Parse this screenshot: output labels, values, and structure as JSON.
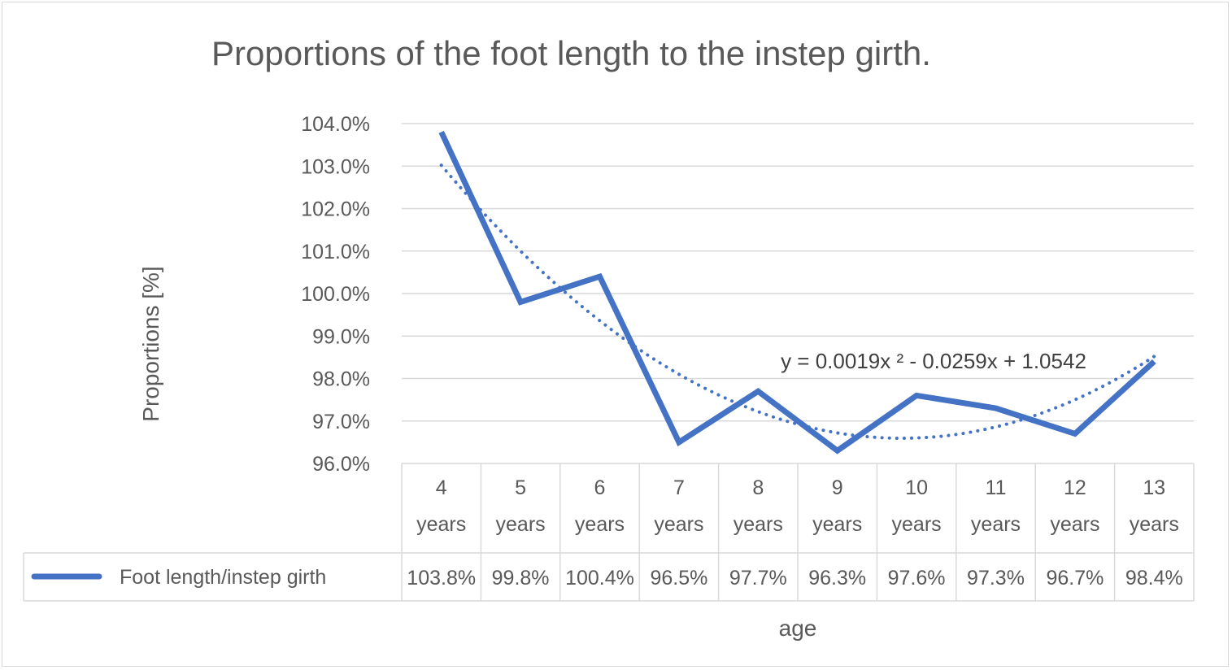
{
  "chart_data": {
    "type": "line",
    "title": "Proportions of the foot length to the instep girth.",
    "xlabel": "age",
    "ylabel": "Proportions [%]",
    "ylim": [
      0.96,
      1.04
    ],
    "y_ticks": [
      "104.0%",
      "103.0%",
      "102.0%",
      "101.0%",
      "100.0%",
      "99.0%",
      "98.0%",
      "97.0%",
      "96.0%"
    ],
    "categories": [
      {
        "num": "4",
        "unit": "years"
      },
      {
        "num": "5",
        "unit": "years"
      },
      {
        "num": "6",
        "unit": "years"
      },
      {
        "num": "7",
        "unit": "years"
      },
      {
        "num": "8",
        "unit": "years"
      },
      {
        "num": "9",
        "unit": "years"
      },
      {
        "num": "10",
        "unit": "years"
      },
      {
        "num": "11",
        "unit": "years"
      },
      {
        "num": "12",
        "unit": "years"
      },
      {
        "num": "13",
        "unit": "years"
      }
    ],
    "series": [
      {
        "name": "Foot length/instep girth",
        "values": [
          1.038,
          0.998,
          1.004,
          0.965,
          0.977,
          0.963,
          0.976,
          0.973,
          0.967,
          0.984
        ],
        "labels": [
          "103.8%",
          "99.8%",
          "100.4%",
          "96.5%",
          "97.7%",
          "96.3%",
          "97.6%",
          "97.3%",
          "96.7%",
          "98.4%"
        ],
        "color": "#4472c4"
      }
    ],
    "trendline": {
      "type": "polynomial",
      "order": 2,
      "coefficients": [
        0.0019,
        -0.0259,
        1.0542
      ],
      "equation": "y = 0.0019x ² -   0.0259x + 1.0542",
      "style": "dotted",
      "color": "#4472c4"
    },
    "grid": true,
    "data_table": true
  }
}
